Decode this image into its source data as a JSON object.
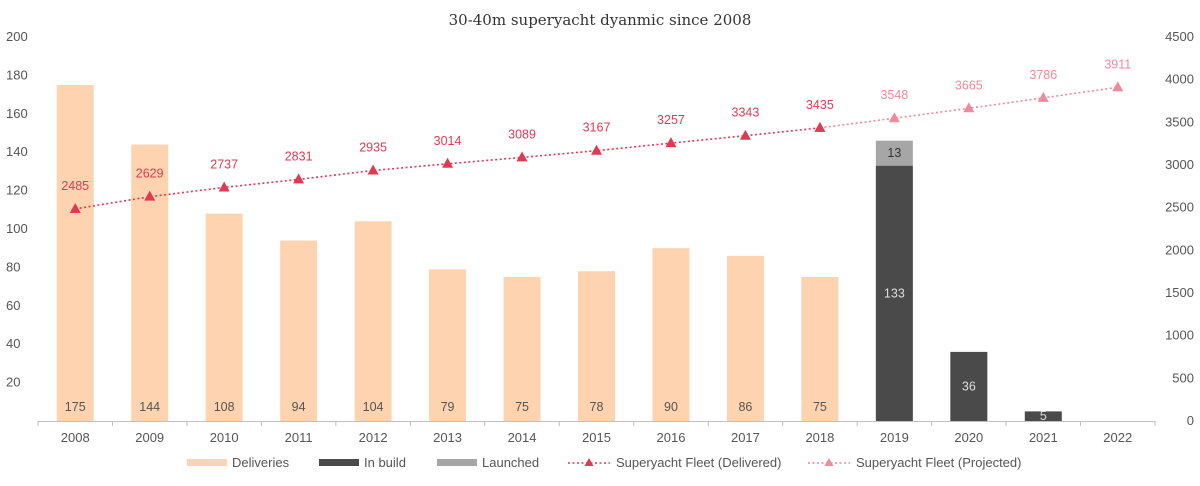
{
  "chart_data": {
    "type": "bar",
    "title": "30-40m superyacht dyanmic since 2008",
    "categories": [
      "2008",
      "2009",
      "2010",
      "2011",
      "2012",
      "2013",
      "2014",
      "2015",
      "2016",
      "2017",
      "2018",
      "2019",
      "2020",
      "2021",
      "2022"
    ],
    "y_left": {
      "lim": [
        0,
        200
      ],
      "ticks": [
        20,
        40,
        60,
        80,
        100,
        120,
        140,
        160,
        180,
        200
      ]
    },
    "y_right": {
      "lim": [
        0,
        4500
      ],
      "ticks": [
        0,
        500,
        1000,
        1500,
        2000,
        2500,
        3000,
        3500,
        4000,
        4500
      ]
    },
    "grid": false,
    "legend_position": "bottom",
    "series": [
      {
        "name": "Deliveries",
        "kind": "bar",
        "axis": "left",
        "color": "#fdd3b0",
        "label_color": "#555555",
        "values": [
          175,
          144,
          108,
          94,
          104,
          79,
          75,
          78,
          90,
          86,
          75,
          null,
          null,
          null,
          null
        ]
      },
      {
        "name": "In build",
        "kind": "bar-stack",
        "axis": "left",
        "color": "#4a4a4a",
        "label_color": "#dddddd",
        "values": [
          null,
          null,
          null,
          null,
          null,
          null,
          null,
          null,
          null,
          null,
          null,
          133,
          36,
          5,
          null
        ]
      },
      {
        "name": "Launched",
        "kind": "bar-stack",
        "axis": "left",
        "color": "#a6a6a6",
        "label_color": "#333333",
        "values": [
          null,
          null,
          null,
          null,
          null,
          null,
          null,
          null,
          null,
          null,
          null,
          13,
          null,
          null,
          null
        ]
      },
      {
        "name": "Superyacht Fleet (Delivered)",
        "kind": "line",
        "axis": "right",
        "color": "#e03a52",
        "values": [
          2485,
          2629,
          2737,
          2831,
          2935,
          3014,
          3089,
          3167,
          3257,
          3343,
          3435,
          null,
          null,
          null,
          null
        ]
      },
      {
        "name": "Superyacht Fleet (Projected)",
        "kind": "line",
        "axis": "right",
        "color": "#f08a9a",
        "values": [
          null,
          null,
          null,
          null,
          null,
          null,
          null,
          null,
          null,
          null,
          3435,
          3548,
          3665,
          3786,
          3911
        ]
      }
    ]
  }
}
